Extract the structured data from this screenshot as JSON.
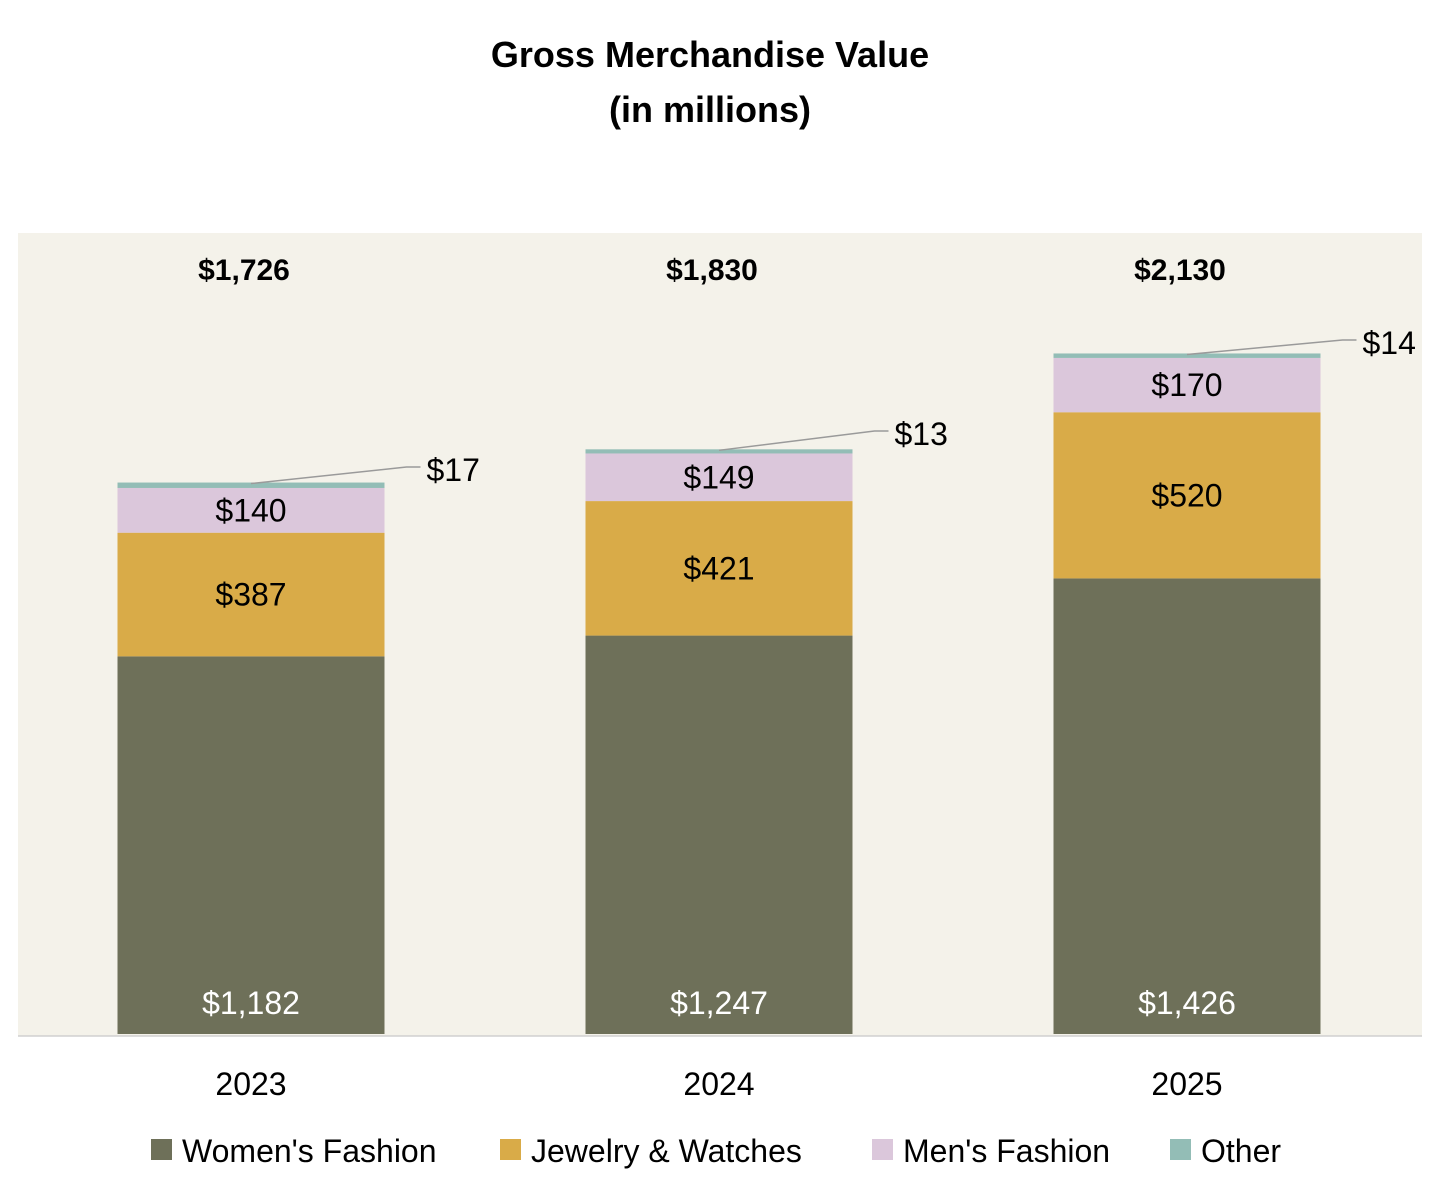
{
  "chart_data": {
    "type": "bar",
    "stacked": true,
    "title": "Gross Merchandise Value",
    "subtitle": "(in millions)",
    "categories": [
      "2023",
      "2024",
      "2025"
    ],
    "series": [
      {
        "name": "Women's Fashion",
        "color": "#6e7059",
        "label_color": "#ffffff",
        "values": [
          1182,
          1247,
          1426
        ],
        "labels": [
          "$1,182",
          "$1,247",
          "$1,426"
        ]
      },
      {
        "name": "Jewelry & Watches",
        "color": "#d9ab48",
        "label_color": "#000000",
        "values": [
          387,
          421,
          520
        ],
        "labels": [
          "$387",
          "$421",
          "$520"
        ]
      },
      {
        "name": "Men's Fashion",
        "color": "#dbc7db",
        "label_color": "#000000",
        "values": [
          140,
          149,
          170
        ],
        "labels": [
          "$140",
          "$149",
          "$170"
        ]
      },
      {
        "name": "Other",
        "color": "#93bdb6",
        "label_color": "#000000",
        "values": [
          17,
          13,
          14
        ],
        "labels": [
          "$17",
          "$13",
          "$14"
        ]
      }
    ],
    "totals": [
      1726,
      1830,
      2130
    ],
    "total_labels": [
      "$1,726",
      "$1,830",
      "$2,130"
    ],
    "ylim": [
      0,
      2400
    ],
    "xlabel": "",
    "ylabel": "",
    "grid": false,
    "legend_position": "bottom",
    "plot_background": "#f4f2ea"
  }
}
